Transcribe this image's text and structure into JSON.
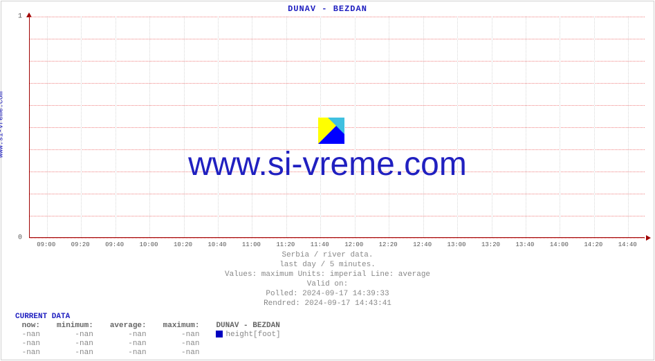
{
  "site_label": "www.si-vreme.com",
  "chart": {
    "title": "DUNAV -  BEZDAN",
    "type": "line",
    "ylim": [
      0,
      1
    ],
    "yticks": [
      0,
      1
    ],
    "xticks": [
      "09:00",
      "09:20",
      "09:40",
      "10:00",
      "10:20",
      "10:40",
      "11:00",
      "11:20",
      "11:40",
      "12:00",
      "12:20",
      "12:40",
      "13:00",
      "13:20",
      "13:40",
      "14:00",
      "14:20",
      "14:40"
    ],
    "hgrid_step": 0.1,
    "axis_color": "#a00000",
    "hgrid_color": "#f08080",
    "vgrid_color": "#d8d8d8",
    "title_color": "#2020c0",
    "background_color": "#ffffff",
    "series": []
  },
  "watermark": {
    "text": "www.si-vreme.com",
    "color": "#2020c0",
    "fontsize": 48,
    "icon_colors": {
      "tl": "#ffff00",
      "tr": "#40c0e0",
      "diag": "#0000ff"
    }
  },
  "footer": {
    "line1": "Serbia / river data.",
    "line2": "last day / 5 minutes.",
    "line3": "Values: maximum  Units: imperial  Line: average",
    "line4": "Valid on:",
    "line5": "Polled: 2024-09-17 14:39:33",
    "line6": "Rendred: 2024-09-17 14:43:41"
  },
  "current_data": {
    "title": "CURRENT DATA",
    "columns": [
      "now:",
      "minimum:",
      "average:",
      "maximum:"
    ],
    "legend_header": "DUNAV -  BEZDAN",
    "rows": [
      {
        "now": "-nan",
        "min": "-nan",
        "avg": "-nan",
        "max": "-nan",
        "swatch": "#0000c0",
        "label": "height[foot]"
      },
      {
        "now": "-nan",
        "min": "-nan",
        "avg": "-nan",
        "max": "-nan",
        "swatch": null,
        "label": ""
      },
      {
        "now": "-nan",
        "min": "-nan",
        "avg": "-nan",
        "max": "-nan",
        "swatch": null,
        "label": ""
      }
    ]
  }
}
